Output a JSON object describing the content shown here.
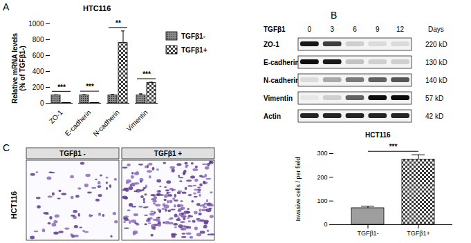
{
  "panels": [
    "A",
    "B",
    "C"
  ],
  "chart_data": [
    {
      "type": "bar",
      "title": "HTC116",
      "y_label": "Relative mRNA levels\n(% of TGFβ1-)",
      "categories": [
        "ZO-1",
        "E-cadherin",
        "N-cadherin",
        "Vimentin"
      ],
      "series": [
        {
          "name": "TGFβ1-",
          "color": "#8c8c8c",
          "values": [
            100,
            100,
            100,
            100
          ],
          "errors": [
            6,
            8,
            10,
            18
          ]
        },
        {
          "name": "TGFβ1+",
          "color": "#3a3a3a",
          "values": [
            4,
            4,
            760,
            255
          ],
          "errors": [
            1,
            1,
            150,
            10
          ]
        }
      ],
      "annotations": [
        "***",
        "***",
        "**",
        "***"
      ],
      "ylim": [
        0,
        1000
      ],
      "yticks": [
        0,
        200,
        400,
        600,
        800,
        1000
      ],
      "grid": false,
      "legend": "right"
    },
    {
      "type": "bar",
      "title": "HCT116",
      "y_label": "Invasive cells / per field",
      "categories": [
        "TGFβ1-",
        "TGFβ1+"
      ],
      "values": [
        70,
        275
      ],
      "errors": [
        8,
        20
      ],
      "colors": [
        "#9e9e9e",
        "#3a3a3a"
      ],
      "annotations": [
        "***"
      ],
      "ylim": [
        0,
        300
      ],
      "yticks": [
        0,
        100,
        200,
        300
      ],
      "grid": false
    }
  ],
  "blot": {
    "header": "TGFβ1",
    "lanes": [
      0,
      3,
      6,
      9,
      12
    ],
    "lanes_label": "Days",
    "rows": [
      {
        "name": "ZO-1",
        "size": "220 kD",
        "bands": [
          0.9,
          0.75,
          0.15,
          0.1,
          0.1
        ]
      },
      {
        "name": "E-cadherin",
        "size": "130 kD",
        "bands": [
          0.95,
          0.9,
          0.2,
          0.15,
          0.15
        ]
      },
      {
        "name": "N-cadherin",
        "size": "140 kD",
        "bands": [
          0.1,
          0.3,
          0.5,
          0.6,
          0.65
        ]
      },
      {
        "name": "Vimentin",
        "size": "57 kD",
        "bands": [
          0.05,
          0.15,
          0.6,
          0.95,
          0.95
        ]
      },
      {
        "name": "Actin",
        "size": "42 kD",
        "bands": [
          0.85,
          0.85,
          0.85,
          0.85,
          0.85
        ]
      }
    ]
  },
  "micrographs": {
    "row_label": "HCT116",
    "columns": [
      "TGFβ1 -",
      "TGFβ1 +"
    ]
  }
}
